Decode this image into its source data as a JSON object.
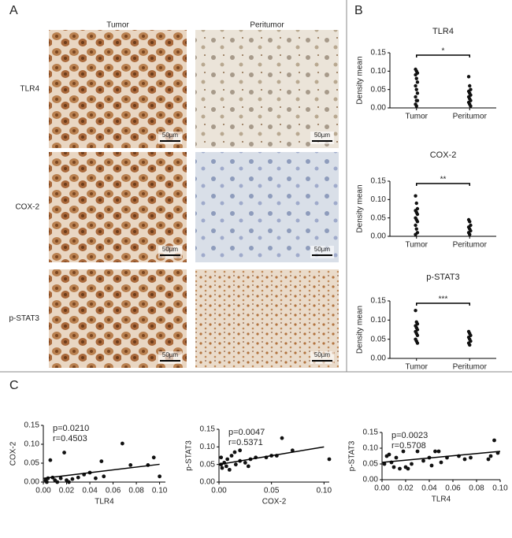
{
  "panel_labels": [
    "A",
    "B",
    "C"
  ],
  "panel_a": {
    "columns": [
      "Tumor",
      "Peritumor"
    ],
    "rows": [
      "TLR4",
      "COX-2",
      "p-STAT3"
    ],
    "scale_bar": "50µm"
  },
  "chart_data": [
    {
      "type": "strip",
      "title": "TLR4",
      "y_label": "Density mean",
      "categories": [
        "Tumor",
        "Peritumor"
      ],
      "values": [
        [
          0.105,
          0.1,
          0.095,
          0.09,
          0.08,
          0.07,
          0.06,
          0.05,
          0.04,
          0.03,
          0.02,
          0.02,
          0.01,
          0.005
        ],
        [
          0.085,
          0.06,
          0.05,
          0.045,
          0.04,
          0.035,
          0.03,
          0.025,
          0.02,
          0.015,
          0.01,
          0.005
        ]
      ],
      "annotation": "*",
      "ylim": [
        0,
        0.15
      ],
      "yticks": [
        {
          "value": 0,
          "label": "0.00"
        },
        0.05,
        {
          "value": 0.1,
          "label": "0.10"
        },
        0.15
      ]
    },
    {
      "type": "strip",
      "title": "COX-2",
      "y_label": "Density mean",
      "categories": [
        "Tumor",
        "Peritumor"
      ],
      "values": [
        [
          0.11,
          0.09,
          0.075,
          0.07,
          0.065,
          0.06,
          0.05,
          0.045,
          0.04,
          0.03,
          0.02,
          0.01,
          0.005
        ],
        [
          0.045,
          0.04,
          0.03,
          0.025,
          0.02,
          0.015,
          0.01,
          0.005
        ]
      ],
      "annotation": "**",
      "ylim": [
        0,
        0.15
      ],
      "yticks": [
        {
          "value": 0,
          "label": "0.00"
        },
        0.05,
        {
          "value": 0.1,
          "label": "0.10"
        },
        0.15
      ]
    },
    {
      "type": "strip",
      "title": "p-STAT3",
      "y_label": "Density mean",
      "categories": [
        "Tumor",
        "Peritumor"
      ],
      "values": [
        [
          0.125,
          0.095,
          0.09,
          0.085,
          0.08,
          0.075,
          0.07,
          0.065,
          0.06,
          0.05,
          0.045,
          0.04
        ],
        [
          0.07,
          0.065,
          0.06,
          0.055,
          0.05,
          0.045,
          0.04,
          0.035
        ]
      ],
      "annotation": "***",
      "ylim": [
        0,
        0.15
      ],
      "yticks": [
        {
          "value": 0,
          "label": "0.00"
        },
        0.05,
        {
          "value": 0.1,
          "label": "0.10"
        },
        0.15
      ]
    },
    {
      "type": "scatter",
      "x_label": "TLR4",
      "y_label": "COX-2",
      "annotations": [
        "p=0.0210",
        "r=0.4503"
      ],
      "x": [
        0.002,
        0.004,
        0.006,
        0.008,
        0.01,
        0.012,
        0.015,
        0.018,
        0.02,
        0.025,
        0.03,
        0.035,
        0.04,
        0.045,
        0.05,
        0.052,
        0.068,
        0.075,
        0.09,
        0.095,
        0.1,
        0.003,
        0.022
      ],
      "values": [
        0.005,
        0.01,
        0.058,
        0.012,
        0.005,
        0.0,
        0.01,
        0.078,
        0.005,
        0.008,
        0.012,
        0.02,
        0.025,
        0.01,
        0.055,
        0.015,
        0.102,
        0.045,
        0.045,
        0.065,
        0.015,
        0.0,
        0.0
      ],
      "trendline": {
        "x": [
          0,
          0.1
        ],
        "y": [
          0.01,
          0.047
        ]
      },
      "xlim": [
        0,
        0.105
      ],
      "xticks": [
        {
          "value": 0,
          "label": "0.00"
        },
        0.02,
        0.04,
        0.06,
        0.08,
        {
          "value": 0.1,
          "label": "0.10"
        }
      ],
      "ylim": [
        0,
        0.15
      ],
      "yticks": [
        {
          "value": 0,
          "label": "0.00"
        },
        0.05,
        {
          "value": 0.1,
          "label": "0.10"
        },
        0.15
      ]
    },
    {
      "type": "scatter",
      "x_label": "COX-2",
      "y_label": "p-STAT3",
      "annotations": [
        "p=0.0047",
        "r=0.5371"
      ],
      "x": [
        0.002,
        0.003,
        0.005,
        0.007,
        0.008,
        0.01,
        0.012,
        0.015,
        0.016,
        0.02,
        0.02,
        0.025,
        0.028,
        0.03,
        0.035,
        0.045,
        0.05,
        0.055,
        0.06,
        0.07,
        0.105,
        0.002
      ],
      "values": [
        0.05,
        0.04,
        0.055,
        0.045,
        0.065,
        0.035,
        0.075,
        0.085,
        0.05,
        0.09,
        0.06,
        0.055,
        0.045,
        0.065,
        0.07,
        0.07,
        0.075,
        0.075,
        0.125,
        0.09,
        0.065,
        0.07
      ],
      "trendline": {
        "x": [
          0,
          0.1
        ],
        "y": [
          0.05,
          0.1
        ]
      },
      "xlim": [
        0,
        0.105
      ],
      "xticks": [
        {
          "value": 0,
          "label": "0.00"
        },
        0.05,
        {
          "value": 0.1,
          "label": "0.10"
        }
      ],
      "ylim": [
        0,
        0.15
      ],
      "yticks": [
        {
          "value": 0,
          "label": "0.00"
        },
        0.05,
        {
          "value": 0.1,
          "label": "0.10"
        },
        0.15
      ]
    },
    {
      "type": "scatter",
      "x_label": "TLR4",
      "y_label": "p-STAT3",
      "annotations": [
        "p=0.0023",
        "r=0.5708"
      ],
      "x": [
        0.002,
        0.004,
        0.006,
        0.008,
        0.01,
        0.012,
        0.015,
        0.018,
        0.02,
        0.022,
        0.025,
        0.03,
        0.035,
        0.04,
        0.042,
        0.045,
        0.048,
        0.05,
        0.055,
        0.065,
        0.07,
        0.075,
        0.09,
        0.092,
        0.095,
        0.098
      ],
      "values": [
        0.05,
        0.075,
        0.08,
        0.055,
        0.04,
        0.07,
        0.035,
        0.09,
        0.04,
        0.035,
        0.05,
        0.09,
        0.06,
        0.07,
        0.045,
        0.09,
        0.09,
        0.055,
        0.07,
        0.075,
        0.065,
        0.07,
        0.065,
        0.075,
        0.125,
        0.085
      ],
      "trendline": {
        "x": [
          0,
          0.1
        ],
        "y": [
          0.055,
          0.09
        ]
      },
      "xlim": [
        0,
        0.1
      ],
      "xticks": [
        {
          "value": 0,
          "label": "0.00"
        },
        0.02,
        0.04,
        0.06,
        0.08,
        {
          "value": 0.1,
          "label": "0.10"
        }
      ],
      "ylim": [
        0,
        0.15
      ],
      "yticks": [
        {
          "value": 0,
          "label": "0.00"
        },
        0.05,
        {
          "value": 0.1,
          "label": "0.10"
        },
        0.15
      ]
    }
  ]
}
